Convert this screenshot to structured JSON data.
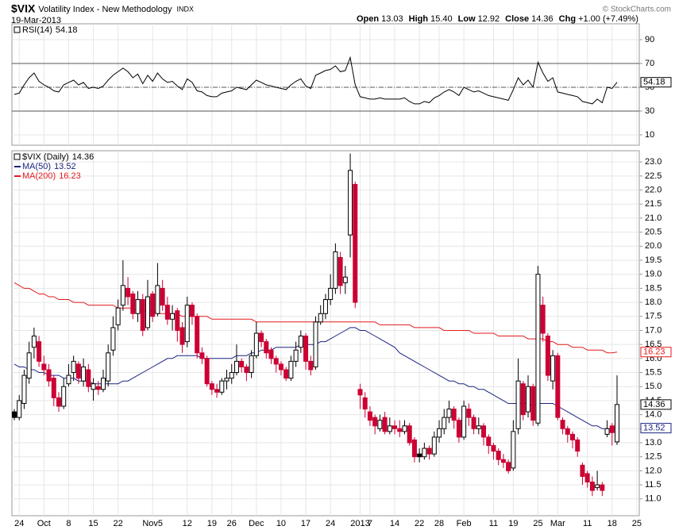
{
  "header": {
    "symbol": "$VIX",
    "name": "Volatility Index - New Methodology",
    "exchange": "INDX",
    "date": "19-Mar-2013",
    "quote": [
      {
        "label": "Open",
        "value": "13.03"
      },
      {
        "label": "High",
        "value": "15.40"
      },
      {
        "label": "Low",
        "value": "12.92"
      },
      {
        "label": "Close",
        "value": "14.36"
      },
      {
        "label": "Chg",
        "value": "+1.00 (+7.49%)"
      }
    ],
    "credit": "© StockCharts.com"
  },
  "chart_data": [
    {
      "type": "line",
      "series": [
        {
          "name": "RSI(14)",
          "last_label": "54.18",
          "color": "#000000",
          "values": [
            44,
            45,
            52,
            58,
            62,
            55,
            52,
            50,
            47,
            46,
            52,
            54,
            56,
            52,
            54,
            49,
            50,
            49,
            51,
            56,
            60,
            63,
            66,
            63,
            58,
            61,
            53,
            60,
            55,
            62,
            57,
            54,
            55,
            51,
            48,
            57,
            54,
            47,
            46,
            43,
            42,
            42,
            45,
            46,
            47,
            50,
            49,
            48,
            52,
            56,
            54,
            52,
            51,
            50,
            49,
            48,
            52,
            55,
            57,
            51,
            49,
            60,
            62,
            64,
            65,
            68,
            63,
            64,
            75,
            52,
            42,
            41,
            40,
            40,
            41,
            40,
            40,
            40,
            40,
            41,
            38,
            36,
            36,
            38,
            37,
            41,
            43,
            46,
            48,
            46,
            43,
            50,
            48,
            46,
            47,
            45,
            43,
            42,
            41,
            40,
            39,
            48,
            58,
            52,
            56,
            50,
            71,
            62,
            55,
            58,
            46,
            45,
            44,
            43,
            42,
            38,
            37,
            36,
            40,
            37,
            50,
            49,
            54.18,
            null,
            null,
            null,
            null
          ]
        }
      ],
      "ylim": [
        1.3,
        103.3
      ],
      "yticks": [
        10,
        30,
        50,
        70,
        90
      ],
      "levels": [
        30,
        70
      ],
      "centerline": 50,
      "grid": true
    },
    {
      "type": "candlestick",
      "name": "$VIX (Daily)",
      "last_label": "14.36",
      "categories": [
        null,
        "24",
        null,
        null,
        null,
        null,
        "Oct",
        null,
        null,
        null,
        null,
        "8",
        null,
        null,
        null,
        null,
        "15",
        null,
        null,
        null,
        null,
        "22",
        null,
        null,
        null,
        null,
        null,
        null,
        "Nov5",
        null,
        null,
        null,
        null,
        null,
        null,
        "12",
        null,
        null,
        null,
        null,
        "19",
        null,
        null,
        null,
        "26",
        null,
        null,
        null,
        null,
        "Dec",
        null,
        null,
        null,
        null,
        "10",
        null,
        null,
        null,
        null,
        "17",
        null,
        null,
        null,
        null,
        "24",
        null,
        null,
        null,
        null,
        null,
        "2013",
        null,
        "7",
        null,
        null,
        null,
        null,
        "14",
        null,
        null,
        null,
        null,
        "22",
        null,
        null,
        null,
        "28",
        null,
        null,
        null,
        null,
        "Feb",
        null,
        null,
        null,
        null,
        null,
        "11",
        null,
        null,
        null,
        "19",
        null,
        null,
        null,
        null,
        "25",
        null,
        null,
        null,
        "Mar",
        null,
        null,
        null,
        null,
        null,
        "11",
        null,
        null,
        null,
        null,
        "18",
        null,
        null,
        null,
        null,
        "25"
      ],
      "open": [
        14.1,
        13.9,
        14.4,
        15.3,
        16.4,
        16.6,
        15.8,
        15.6,
        15.3,
        14.6,
        14.3,
        15.1,
        15.5,
        15.8,
        15.2,
        15.6,
        14.9,
        15.0,
        14.9,
        15.2,
        16.3,
        17.2,
        17.9,
        18.5,
        18.3,
        17.6,
        18.1,
        17.1,
        18.3,
        17.6,
        18.5,
        17.9,
        17.4,
        17.7,
        17.1,
        16.6,
        17.9,
        17.5,
        16.2,
        16.0,
        15.1,
        14.9,
        14.8,
        15.2,
        15.3,
        15.5,
        15.9,
        15.7,
        15.5,
        16.1,
        16.9,
        16.6,
        16.3,
        16.0,
        15.8,
        15.6,
        15.3,
        15.9,
        16.4,
        16.8,
        15.9,
        15.7,
        17.3,
        17.6,
        18.1,
        18.5,
        19.6,
        18.7,
        20.4,
        22.2,
        14.9,
        14.6,
        14.1,
        13.9,
        13.5,
        13.9,
        13.4,
        13.6,
        13.5,
        13.4,
        13.6,
        13.1,
        12.6,
        12.5,
        12.8,
        12.6,
        13.2,
        13.5,
        13.9,
        14.2,
        13.8,
        13.2,
        14.2,
        13.9,
        13.5,
        13.6,
        13.2,
        12.9,
        12.7,
        12.4,
        12.3,
        12.1,
        13.5,
        15.1,
        14.1,
        15.0,
        13.7,
        17.9,
        16.8,
        15.2,
        16.1,
        13.8,
        13.5,
        13.3,
        13.1,
        12.2,
        11.9,
        11.6,
        11.4,
        11.5,
        13.3,
        13.6,
        13.03,
        null,
        null,
        null,
        null
      ],
      "high": [
        14.2,
        14.7,
        15.6,
        16.6,
        17.1,
        16.8,
        16.1,
        15.8,
        15.4,
        14.8,
        15.3,
        15.8,
        16.1,
        15.9,
        16.0,
        15.8,
        15.3,
        15.2,
        15.6,
        16.5,
        17.5,
        18.1,
        19.5,
        18.9,
        18.4,
        18.4,
        18.3,
        18.8,
        18.4,
        19.4,
        18.8,
        18.2,
        17.9,
        17.8,
        17.3,
        18.2,
        18.0,
        17.6,
        16.4,
        16.1,
        15.2,
        15.1,
        15.3,
        15.6,
        15.8,
        16.5,
        16.0,
        15.8,
        16.3,
        17.3,
        17.0,
        16.7,
        16.4,
        16.1,
        15.9,
        15.7,
        16.1,
        16.6,
        17.0,
        16.9,
        16.1,
        17.5,
        17.9,
        18.3,
        19.0,
        20.1,
        19.8,
        19.3,
        23.3,
        22.3,
        15.1,
        14.8,
        14.3,
        14.0,
        14.0,
        14.1,
        13.9,
        13.8,
        13.8,
        13.8,
        13.7,
        13.2,
        12.8,
        13.0,
        12.9,
        13.4,
        13.8,
        14.2,
        14.5,
        14.3,
        13.9,
        14.5,
        14.4,
        14.0,
        13.9,
        13.7,
        13.3,
        13.0,
        12.8,
        12.6,
        12.4,
        13.8,
        16.0,
        15.2,
        15.4,
        15.1,
        19.3,
        18.2,
        16.9,
        16.3,
        16.2,
        13.9,
        13.6,
        13.4,
        13.2,
        12.3,
        12.0,
        11.8,
        12.0,
        11.6,
        13.8,
        13.7,
        15.4,
        null,
        null,
        null,
        null
      ],
      "low": [
        13.8,
        13.8,
        14.2,
        15.1,
        16.0,
        15.7,
        15.4,
        15.0,
        14.3,
        14.1,
        14.2,
        15.0,
        15.2,
        15.1,
        15.0,
        14.8,
        14.5,
        14.7,
        14.8,
        15.0,
        16.1,
        17.0,
        17.7,
        17.9,
        17.4,
        17.3,
        16.8,
        17.0,
        17.3,
        17.5,
        17.7,
        17.2,
        17.0,
        16.6,
        16.2,
        16.4,
        17.2,
        16.0,
        15.8,
        15.0,
        14.7,
        14.6,
        14.7,
        14.9,
        15.1,
        15.4,
        15.5,
        15.2,
        15.3,
        16.0,
        16.4,
        16.0,
        15.8,
        15.5,
        15.4,
        15.2,
        15.2,
        15.7,
        16.2,
        15.6,
        15.4,
        15.6,
        17.2,
        17.4,
        17.9,
        18.3,
        18.3,
        18.3,
        19.6,
        17.8,
        14.2,
        13.9,
        13.6,
        13.3,
        13.4,
        13.3,
        13.3,
        13.3,
        13.2,
        13.3,
        12.9,
        12.3,
        12.3,
        12.4,
        12.4,
        12.5,
        13.0,
        13.3,
        13.7,
        13.5,
        13.0,
        13.1,
        13.6,
        13.3,
        13.3,
        12.9,
        12.6,
        12.4,
        12.2,
        12.1,
        11.9,
        12.0,
        13.3,
        13.8,
        13.9,
        13.6,
        13.6,
        16.6,
        15.2,
        14.9,
        13.8,
        13.3,
        13.0,
        12.8,
        12.5,
        11.5,
        11.4,
        11.1,
        11.3,
        11.1,
        13.2,
        12.9,
        12.92,
        null,
        null,
        null,
        null
      ],
      "close": [
        13.9,
        14.5,
        15.4,
        16.2,
        16.8,
        15.9,
        15.6,
        15.2,
        14.6,
        14.3,
        15.0,
        15.4,
        15.9,
        15.3,
        15.7,
        15.0,
        15.1,
        14.9,
        15.3,
        16.2,
        17.1,
        17.8,
        18.6,
        18.2,
        17.6,
        18.1,
        17.0,
        18.2,
        17.5,
        18.6,
        17.9,
        17.4,
        17.6,
        17.0,
        16.5,
        17.9,
        17.5,
        16.2,
        16.0,
        15.1,
        14.9,
        14.8,
        15.2,
        15.3,
        15.5,
        15.9,
        15.7,
        15.5,
        16.1,
        16.9,
        16.6,
        16.2,
        16.0,
        15.8,
        15.6,
        15.3,
        15.9,
        16.3,
        16.8,
        15.9,
        15.6,
        17.3,
        17.6,
        18.1,
        18.5,
        19.8,
        18.6,
        18.9,
        22.7,
        18.0,
        14.7,
        14.2,
        13.8,
        13.6,
        13.8,
        13.4,
        13.6,
        13.5,
        13.4,
        13.6,
        13.0,
        12.5,
        12.5,
        12.8,
        12.6,
        13.2,
        13.5,
        13.9,
        14.2,
        13.8,
        13.2,
        14.3,
        13.9,
        13.5,
        13.6,
        13.2,
        12.9,
        12.7,
        12.4,
        12.3,
        12.0,
        13.4,
        15.2,
        14.0,
        15.0,
        13.8,
        19.0,
        16.9,
        15.4,
        16.1,
        13.9,
        13.5,
        13.3,
        13.1,
        12.7,
        11.8,
        11.6,
        11.3,
        11.5,
        11.3,
        13.5,
        13.36,
        14.36,
        null,
        null,
        null,
        null
      ],
      "up_color": "#000000",
      "down_color": "#cc0033",
      "series": [
        {
          "name": "MA(50)",
          "last_label": "13.52",
          "color": "#1a237e",
          "values": [
            15.8,
            15.7,
            15.7,
            15.6,
            15.6,
            15.5,
            15.5,
            15.4,
            15.4,
            15.4,
            15.3,
            15.3,
            15.3,
            15.2,
            15.2,
            15.2,
            15.1,
            15.1,
            15.1,
            15.1,
            15.1,
            15.1,
            15.2,
            15.2,
            15.3,
            15.4,
            15.5,
            15.6,
            15.7,
            15.8,
            15.9,
            16.0,
            16.0,
            16.1,
            16.1,
            16.1,
            16.1,
            16.1,
            16.0,
            16.0,
            16.0,
            16.0,
            16.0,
            16.0,
            16.0,
            16.1,
            16.1,
            16.1,
            16.2,
            16.2,
            16.3,
            16.3,
            16.3,
            16.4,
            16.4,
            16.4,
            16.4,
            16.4,
            16.5,
            16.5,
            16.5,
            16.5,
            16.6,
            16.6,
            16.7,
            16.8,
            16.9,
            17.0,
            17.1,
            17.1,
            17.0,
            17.0,
            16.9,
            16.8,
            16.7,
            16.6,
            16.5,
            16.4,
            16.2,
            16.1,
            16.0,
            15.9,
            15.8,
            15.7,
            15.6,
            15.5,
            15.4,
            15.3,
            15.2,
            15.2,
            15.1,
            15.1,
            15.0,
            15.0,
            14.9,
            14.9,
            14.8,
            14.7,
            14.6,
            14.5,
            14.4,
            14.4,
            14.4,
            14.4,
            14.4,
            14.3,
            14.4,
            14.4,
            14.4,
            14.4,
            14.3,
            14.2,
            14.1,
            14.0,
            13.9,
            13.8,
            13.7,
            13.6,
            13.6,
            13.5,
            13.5,
            13.5,
            13.52,
            null,
            null,
            null,
            null
          ]
        },
        {
          "name": "MA(200)",
          "last_label": "16.23",
          "color": "#e41a1c",
          "values": [
            18.7,
            18.6,
            18.5,
            18.5,
            18.4,
            18.3,
            18.3,
            18.2,
            18.2,
            18.1,
            18.1,
            18.1,
            18.0,
            18.0,
            18.0,
            17.9,
            17.9,
            17.9,
            17.9,
            17.9,
            17.9,
            17.8,
            17.8,
            17.8,
            17.8,
            17.7,
            17.7,
            17.7,
            17.7,
            17.6,
            17.6,
            17.6,
            17.6,
            17.6,
            17.5,
            17.5,
            17.5,
            17.5,
            17.5,
            17.5,
            17.4,
            17.4,
            17.4,
            17.4,
            17.4,
            17.4,
            17.4,
            17.4,
            17.4,
            17.3,
            17.3,
            17.3,
            17.3,
            17.3,
            17.3,
            17.3,
            17.3,
            17.3,
            17.3,
            17.3,
            17.3,
            17.3,
            17.3,
            17.3,
            17.3,
            17.3,
            17.3,
            17.3,
            17.3,
            17.3,
            17.3,
            17.3,
            17.3,
            17.3,
            17.2,
            17.2,
            17.2,
            17.2,
            17.2,
            17.2,
            17.2,
            17.1,
            17.1,
            17.1,
            17.1,
            17.1,
            17.1,
            17.0,
            17.0,
            17.0,
            17.0,
            17.0,
            17.0,
            16.9,
            16.9,
            16.9,
            16.9,
            16.9,
            16.8,
            16.8,
            16.8,
            16.8,
            16.8,
            16.8,
            16.7,
            16.7,
            16.7,
            16.7,
            16.6,
            16.6,
            16.5,
            16.5,
            16.5,
            16.4,
            16.4,
            16.4,
            16.3,
            16.3,
            16.3,
            16.3,
            16.2,
            16.2,
            16.23,
            null,
            null,
            null,
            null
          ]
        }
      ],
      "ylim": [
        10.4,
        23.4
      ],
      "yticks": [
        {
          "value": 11,
          "label": "11.0"
        },
        {
          "value": 11.5,
          "label": "11.5"
        },
        {
          "value": 12,
          "label": "12.0"
        },
        {
          "value": 12.5,
          "label": "12.5"
        },
        {
          "value": 13,
          "label": "13.0"
        },
        {
          "value": 13.5,
          "label": "13.5"
        },
        {
          "value": 14,
          "label": "14.0"
        },
        {
          "value": 14.5,
          "label": "14.5"
        },
        {
          "value": 15,
          "label": "15.0"
        },
        {
          "value": 15.5,
          "label": "15.5"
        },
        {
          "value": 16,
          "label": "16.0"
        },
        {
          "value": 16.5,
          "label": "16.5"
        },
        {
          "value": 17,
          "label": "17.0"
        },
        {
          "value": 17.5,
          "label": "17.5"
        },
        {
          "value": 18,
          "label": "18.0"
        },
        {
          "value": 18.5,
          "label": "18.5"
        },
        {
          "value": 19,
          "label": "19.0"
        },
        {
          "value": 19.5,
          "label": "19.5"
        },
        {
          "value": 20,
          "label": "20.0"
        },
        {
          "value": 20.5,
          "label": "20.5"
        },
        {
          "value": 21,
          "label": "21.0"
        },
        {
          "value": 21.5,
          "label": "21.5"
        },
        {
          "value": 22,
          "label": "22.0"
        },
        {
          "value": 22.5,
          "label": "22.5"
        },
        {
          "value": 23,
          "label": "23.0"
        }
      ],
      "grid": true
    }
  ]
}
